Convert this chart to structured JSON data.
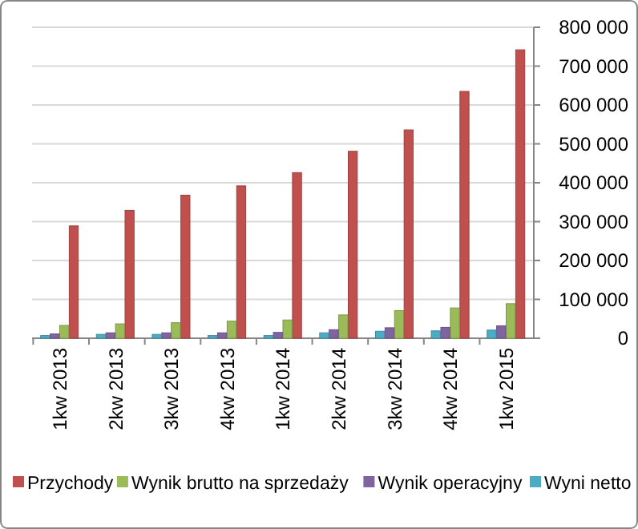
{
  "chart_data": {
    "type": "bar",
    "categories": [
      "1kw 2013",
      "2kw 2013",
      "3kw 2013",
      "4kw 2013",
      "1kw 2014",
      "2kw 2014",
      "3kw 2014",
      "4kw 2014",
      "1kw 2015"
    ],
    "series": [
      {
        "name": "Przychody",
        "color": "#c0504d",
        "values": [
          289000,
          329000,
          368000,
          392000,
          426000,
          481000,
          536000,
          635000,
          742000
        ]
      },
      {
        "name": "Wynik brutto na sprzedaży",
        "color": "#9bbb59",
        "values": [
          33000,
          37000,
          40000,
          44000,
          47000,
          60000,
          71000,
          78000,
          89000
        ]
      },
      {
        "name": "Wynik operacyjny",
        "color": "#8064a2",
        "values": [
          11000,
          14000,
          14000,
          14000,
          15000,
          22000,
          27000,
          28000,
          32000
        ]
      },
      {
        "name": "Wyni netto",
        "color": "#4bacc6",
        "values": [
          7000,
          10000,
          10000,
          7000,
          7000,
          14000,
          18000,
          19000,
          21000
        ]
      }
    ],
    "ylim": [
      0,
      800000
    ],
    "yticks": [
      {
        "value": 0,
        "label": "0"
      },
      {
        "value": 100000,
        "label": "100 000"
      },
      {
        "value": 200000,
        "label": "200 000"
      },
      {
        "value": 300000,
        "label": "300 000"
      },
      {
        "value": 400000,
        "label": "400 000"
      },
      {
        "value": 500000,
        "label": "500 000"
      },
      {
        "value": 600000,
        "label": "600 000"
      },
      {
        "value": 700000,
        "label": "700 000"
      },
      {
        "value": 800000,
        "label": "800 000"
      }
    ],
    "grid": "y",
    "legend": "bottom"
  }
}
